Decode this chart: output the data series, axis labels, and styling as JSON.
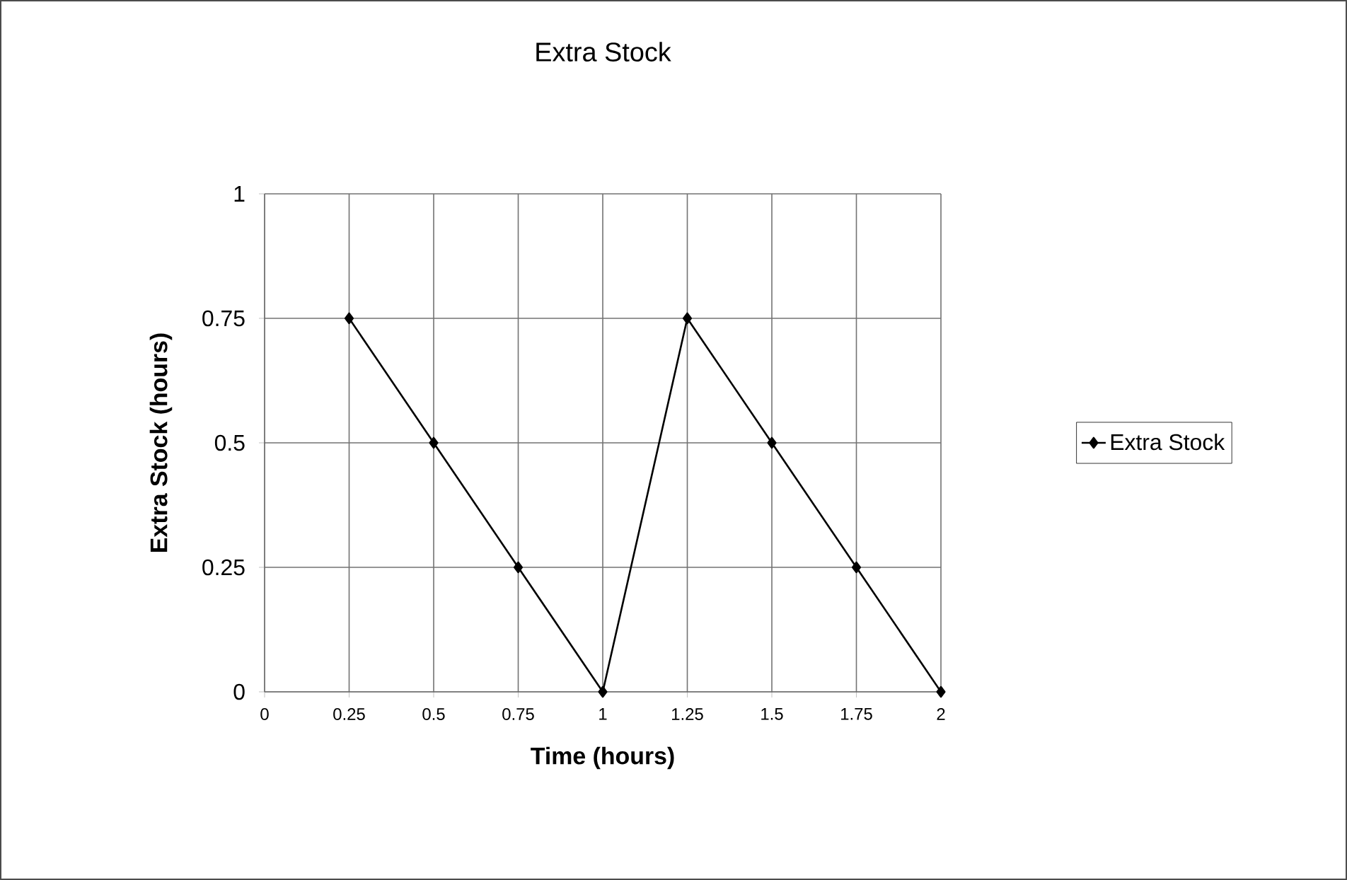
{
  "chart_data": {
    "type": "line",
    "title": "Extra Stock",
    "xlabel": "Time (hours)",
    "ylabel": "Extra Stock (hours)",
    "x": [
      0.25,
      0.5,
      0.75,
      1,
      1.25,
      1.5,
      1.75,
      2
    ],
    "series": [
      {
        "name": "Extra Stock",
        "color": "#000000",
        "values": [
          0.75,
          0.5,
          0.25,
          0,
          0.75,
          0.5,
          0.25,
          0
        ]
      }
    ],
    "xlim": [
      0,
      2
    ],
    "xticks": [
      0,
      0.25,
      0.5,
      0.75,
      1,
      1.25,
      1.5,
      1.75,
      2
    ],
    "ylim": [
      0,
      1
    ],
    "yticks": [
      0,
      0.25,
      0.5,
      0.75,
      1
    ],
    "grid": true,
    "legend": "right",
    "marker": "diamond",
    "line_style": "solid"
  }
}
